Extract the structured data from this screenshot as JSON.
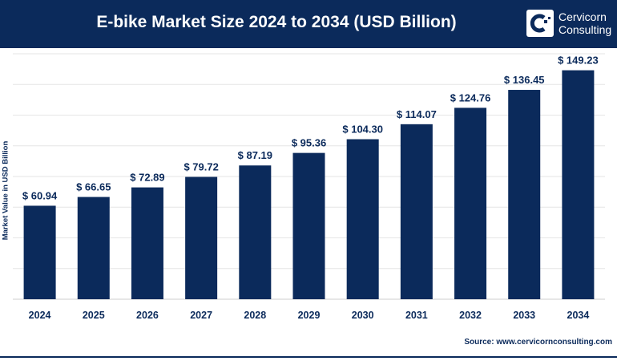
{
  "header": {
    "title": "E-bike Market Size 2024 to 2034 (USD Billion)",
    "logo_text": [
      "Cervicorn",
      "Consulting"
    ]
  },
  "source": "Source: www.cervicornconsulting.com",
  "colors": {
    "bar": "#0b2a5b",
    "header": "#0b2a5b",
    "grid": "#e6e6e6"
  },
  "chart_data": {
    "type": "bar",
    "title": "E-bike Market Size 2024 to 2034 (USD Billion)",
    "xlabel": "",
    "ylabel": "Market Value in USD Billion",
    "categories": [
      "2024",
      "2025",
      "2026",
      "2027",
      "2028",
      "2029",
      "2030",
      "2031",
      "2032",
      "2033",
      "2034"
    ],
    "values": [
      60.94,
      66.65,
      72.89,
      79.72,
      87.19,
      95.36,
      104.3,
      114.07,
      124.76,
      136.45,
      149.23
    ],
    "data_labels": [
      "$ 60.94",
      "$ 66.65",
      "$ 72.89",
      "$ 79.72",
      "$ 87.19",
      "$ 95.36",
      "$ 104.30",
      "$ 114.07",
      "$ 124.76",
      "$ 136.45",
      "$ 149.23"
    ],
    "ylim": [
      0,
      160
    ],
    "grid": true,
    "legend": "none"
  }
}
